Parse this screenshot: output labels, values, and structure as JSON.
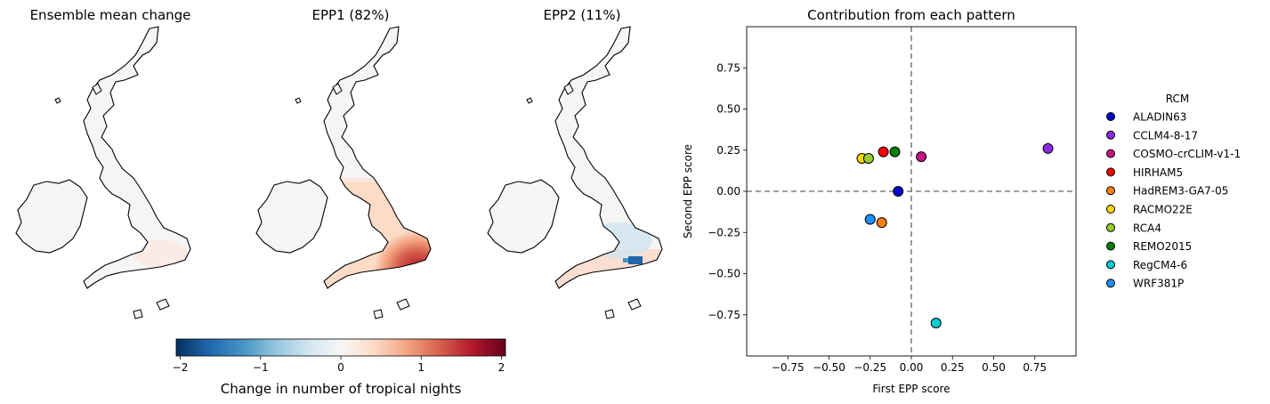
{
  "maps": [
    {
      "title": "Ensemble mean change",
      "style": "mean"
    },
    {
      "title": "EPP1 (82%)",
      "style": "epp1"
    },
    {
      "title": "EPP2 (11%)",
      "style": "epp2"
    }
  ],
  "colorbar": {
    "label": "Change in number of tropical nights",
    "ticks": [
      "−2",
      "−1",
      "0",
      "1",
      "2"
    ],
    "tick_values": [
      -2,
      -1,
      0,
      1,
      2
    ],
    "range": [
      -2.05,
      2.05
    ],
    "colors": [
      "#053061",
      "#2166ac",
      "#4393c3",
      "#92c5de",
      "#d1e5f0",
      "#f7f7f7",
      "#fddbc7",
      "#f4a582",
      "#d6604d",
      "#b2182b",
      "#67001f"
    ]
  },
  "chart_data": {
    "type": "scatter",
    "title": "Contribution from each pattern",
    "xlabel": "First EPP score",
    "ylabel": "Second EPP score",
    "xlim": [
      -1.0,
      1.0
    ],
    "ylim": [
      -1.0,
      1.0
    ],
    "xticks": [
      -0.75,
      -0.5,
      -0.25,
      0.0,
      0.25,
      0.5,
      0.75
    ],
    "xtick_labels": [
      "−0.75",
      "−0.50",
      "−0.25",
      "0.00",
      "0.25",
      "0.50",
      "0.75"
    ],
    "yticks": [
      0.75,
      0.5,
      0.25,
      0.0,
      -0.25,
      -0.5,
      -0.75
    ],
    "ytick_labels": [
      "0.75",
      "0.50",
      "0.25",
      "0.00",
      "−0.25",
      "−0.50",
      "−0.75"
    ],
    "reference_lines": {
      "x": 0.0,
      "y": 0.0,
      "style": "dashed"
    },
    "legend": {
      "title": "RCM",
      "placement": "right"
    },
    "series": [
      {
        "name": "ALADIN63",
        "x": -0.08,
        "y": 0.0,
        "color": "#0000cd"
      },
      {
        "name": "CCLM4-8-17",
        "x": 0.83,
        "y": 0.26,
        "color": "#8a2be2"
      },
      {
        "name": "COSMO-crCLIM-v1-1",
        "x": 0.06,
        "y": 0.21,
        "color": "#c71585"
      },
      {
        "name": "HIRHAM5",
        "x": -0.17,
        "y": 0.24,
        "color": "#ff0000"
      },
      {
        "name": "HadREM3-GA7-05",
        "x": -0.18,
        "y": -0.19,
        "color": "#ff7f0e"
      },
      {
        "name": "RACMO22E",
        "x": -0.3,
        "y": 0.2,
        "color": "#ffd700"
      },
      {
        "name": "RCA4",
        "x": -0.26,
        "y": 0.2,
        "color": "#9acd32"
      },
      {
        "name": "REMO2015",
        "x": -0.1,
        "y": 0.24,
        "color": "#008000"
      },
      {
        "name": "RegCM4-6",
        "x": 0.15,
        "y": -0.8,
        "color": "#00ced1"
      },
      {
        "name": "WRF381P",
        "x": -0.25,
        "y": -0.17,
        "color": "#1e90ff"
      }
    ]
  }
}
